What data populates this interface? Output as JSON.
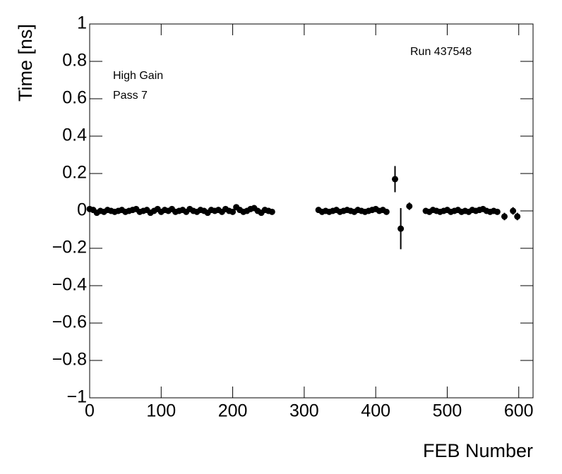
{
  "chart_data": {
    "type": "scatter",
    "xlabel": "FEB Number",
    "ylabel": "Time [ns]",
    "annotations": [
      "High Gain",
      "Pass 7",
      "Run 437548"
    ],
    "color": "#000000",
    "xlim": [
      0,
      620
    ],
    "xticks": [
      0,
      100,
      200,
      300,
      400,
      500,
      600
    ],
    "ylim": [
      -1,
      1
    ],
    "yticks": [
      {
        "value": -1,
        "label": "−1"
      },
      {
        "value": -0.8,
        "label": "−0.8"
      },
      {
        "value": -0.6,
        "label": "−0.6"
      },
      {
        "value": -0.4,
        "label": "−0.4"
      },
      {
        "value": -0.2,
        "label": "−0.2"
      },
      0,
      0.2,
      0.4,
      0.6,
      0.8,
      1
    ],
    "x": [
      0,
      5,
      10,
      15,
      20,
      25,
      30,
      35,
      40,
      45,
      50,
      55,
      60,
      65,
      70,
      75,
      80,
      85,
      90,
      95,
      100,
      105,
      110,
      115,
      120,
      125,
      130,
      135,
      140,
      145,
      150,
      155,
      160,
      165,
      170,
      175,
      180,
      185,
      190,
      195,
      200,
      205,
      210,
      215,
      220,
      225,
      230,
      235,
      240,
      245,
      250,
      255,
      320,
      325,
      330,
      335,
      340,
      345,
      350,
      355,
      360,
      365,
      370,
      375,
      380,
      385,
      390,
      395,
      400,
      405,
      410,
      415,
      427,
      435,
      447,
      470,
      475,
      480,
      485,
      490,
      495,
      500,
      505,
      510,
      515,
      520,
      525,
      530,
      535,
      540,
      545,
      550,
      555,
      560,
      565,
      570,
      580,
      592,
      598
    ],
    "values": [
      0.01,
      0.005,
      -0.01,
      0,
      -0.005,
      0.005,
      0,
      -0.005,
      0,
      0.005,
      -0.005,
      0,
      0.005,
      0.01,
      -0.005,
      0,
      0.005,
      -0.01,
      0,
      0.01,
      -0.005,
      0.005,
      0,
      0.01,
      -0.005,
      0,
      0.005,
      -0.005,
      0.01,
      0,
      -0.005,
      0.005,
      0,
      -0.01,
      0.005,
      0,
      0.005,
      -0.005,
      0.01,
      0,
      -0.005,
      0.02,
      0.005,
      -0.005,
      0,
      0.01,
      0.015,
      0,
      -0.01,
      0.005,
      0,
      -0.005,
      0.005,
      -0.005,
      0,
      -0.005,
      0,
      0.005,
      -0.005,
      0,
      0.005,
      0,
      -0.005,
      0.005,
      0,
      -0.005,
      0,
      0.005,
      0.01,
      0,
      0.005,
      -0.005,
      0.17,
      -0.095,
      0.025,
      0,
      -0.005,
      0.005,
      0,
      -0.005,
      0,
      0.005,
      -0.005,
      0,
      0.005,
      -0.005,
      0,
      -0.005,
      0.005,
      0,
      0.005,
      0.01,
      0,
      -0.005,
      0,
      -0.005,
      -0.03,
      0,
      -0.03
    ],
    "errors": [
      0.01,
      0.01,
      0.01,
      0.01,
      0.01,
      0.01,
      0.01,
      0.01,
      0.01,
      0.01,
      0.01,
      0.01,
      0.01,
      0.01,
      0.01,
      0.01,
      0.01,
      0.01,
      0.01,
      0.01,
      0.01,
      0.01,
      0.01,
      0.01,
      0.01,
      0.01,
      0.01,
      0.01,
      0.01,
      0.01,
      0.01,
      0.01,
      0.01,
      0.01,
      0.01,
      0.01,
      0.01,
      0.01,
      0.01,
      0.01,
      0.01,
      0.01,
      0.01,
      0.01,
      0.01,
      0.01,
      0.01,
      0.01,
      0.01,
      0.01,
      0.01,
      0.01,
      0.01,
      0.01,
      0.01,
      0.01,
      0.01,
      0.01,
      0.01,
      0.01,
      0.01,
      0.01,
      0.01,
      0.01,
      0.01,
      0.01,
      0.01,
      0.01,
      0.01,
      0.01,
      0.01,
      0.01,
      0.07,
      0.11,
      0.02,
      0.01,
      0.01,
      0.01,
      0.01,
      0.01,
      0.01,
      0.01,
      0.01,
      0.01,
      0.01,
      0.01,
      0.01,
      0.01,
      0.01,
      0.01,
      0.01,
      0.01,
      0.01,
      0.01,
      0.01,
      0.01,
      0.02,
      0.02,
      0.02
    ]
  }
}
